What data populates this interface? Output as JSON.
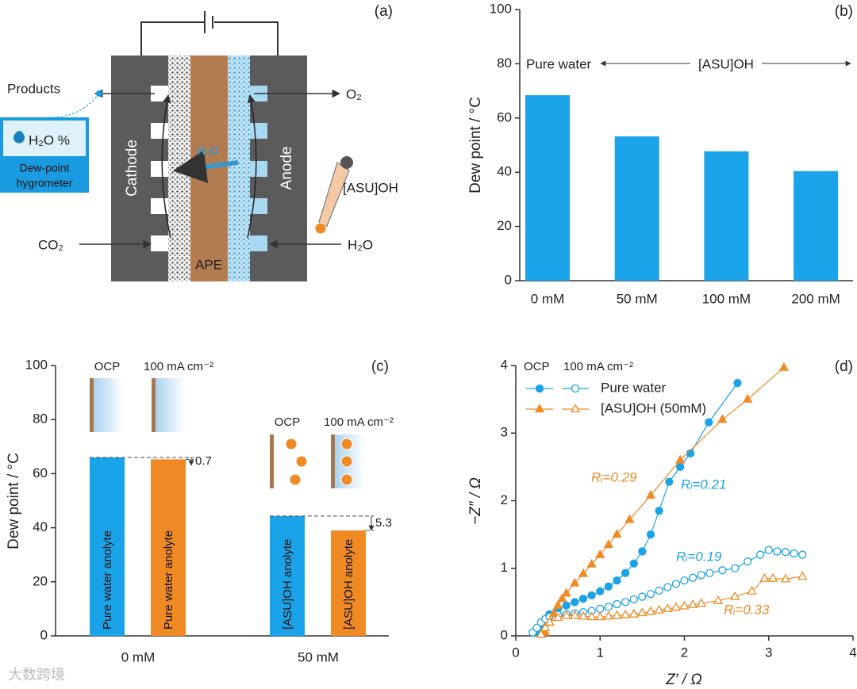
{
  "diagram": {
    "label": "(a)",
    "products": "Products",
    "hygrometer": {
      "reading": "H₂O %",
      "name": [
        "Dew-point",
        "hygrometer"
      ]
    },
    "cathode": "Cathode",
    "anode": "Anode",
    "membrane": "APE",
    "water": "H₂O",
    "additive": "[ASU]OH",
    "inputs": {
      "cathode": "CO₂",
      "anode": "H₂O"
    },
    "outputs": {
      "anode": "O₂"
    }
  },
  "chart_data": [
    {
      "type": "bar",
      "label": "(b)",
      "ylabel": "Dew point / °C",
      "categories": [
        "0 mM",
        "50 mM",
        "100 mM",
        "200 mM"
      ],
      "values": [
        68.4,
        53.2,
        47.7,
        40.4
      ],
      "color": "#1aa3e8",
      "ylim": [
        0,
        100
      ],
      "yticks": [
        0,
        20,
        40,
        60,
        80,
        100
      ],
      "annotations": [
        "Pure water",
        "[ASU]OH"
      ]
    },
    {
      "type": "grouped_bar",
      "label": "(c)",
      "ylabel": "Dew point / °C",
      "categories": [
        "0 mM",
        "50 mM"
      ],
      "series": [
        {
          "name": "OCP",
          "color": "#1aa3e8",
          "values": [
            66.0,
            44.3
          ],
          "bar_labels": [
            "Pure water anolyte",
            "[ASU]OH anolyte"
          ]
        },
        {
          "name": "100 mA cm⁻²",
          "color": "#f08a24",
          "values": [
            65.3,
            39.0
          ],
          "bar_labels": [
            "Pure water anolyte",
            "[ASU]OH anolyte"
          ]
        }
      ],
      "ylim": [
        0,
        100
      ],
      "yticks": [
        0,
        20,
        40,
        60,
        80,
        100
      ],
      "annotations": [
        "0.7",
        "5.3"
      ]
    },
    {
      "type": "line",
      "label": "(d)",
      "xlabel": "Z′ / Ω",
      "ylabel": "−Z″ / Ω",
      "xlim": [
        0,
        4
      ],
      "xticks": [
        0,
        1,
        2,
        3,
        4
      ],
      "ylim": [
        0,
        4
      ],
      "yticks": [
        0,
        1,
        2,
        3,
        4
      ],
      "series": [
        {
          "name": "Pure water",
          "condition": "OCP",
          "color": "#1aa3e8",
          "marker": "circle",
          "filled": true,
          "x": [
            0.25,
            0.3,
            0.35,
            0.4,
            0.5,
            0.6,
            0.7,
            0.8,
            0.9,
            1.0,
            1.1,
            1.2,
            1.3,
            1.4,
            1.5,
            1.6,
            1.7,
            1.82,
            1.95,
            2.07,
            2.29,
            2.63
          ],
          "y": [
            0.05,
            0.15,
            0.25,
            0.32,
            0.4,
            0.45,
            0.5,
            0.55,
            0.6,
            0.66,
            0.73,
            0.82,
            0.93,
            1.07,
            1.25,
            1.5,
            1.85,
            2.28,
            2.5,
            2.7,
            3.16,
            3.74
          ]
        },
        {
          "name": "Pure water",
          "condition": "100 mA cm⁻²",
          "color": "#1aa3e8",
          "marker": "circle",
          "filled": false,
          "x": [
            0.2,
            0.25,
            0.3,
            0.35,
            0.4,
            0.5,
            0.6,
            0.7,
            0.8,
            0.9,
            1.0,
            1.1,
            1.2,
            1.3,
            1.4,
            1.5,
            1.6,
            1.7,
            1.8,
            1.9,
            2.0,
            2.1,
            2.2,
            2.3,
            2.45,
            2.6,
            2.75,
            2.9,
            3.0,
            3.1,
            3.2,
            3.3,
            3.4
          ],
          "y": [
            0.05,
            0.12,
            0.2,
            0.25,
            0.28,
            0.31,
            0.32,
            0.33,
            0.35,
            0.37,
            0.4,
            0.43,
            0.47,
            0.5,
            0.54,
            0.58,
            0.62,
            0.67,
            0.72,
            0.77,
            0.82,
            0.86,
            0.9,
            0.93,
            0.97,
            1.0,
            1.1,
            1.2,
            1.27,
            1.25,
            1.24,
            1.22,
            1.2
          ]
        },
        {
          "name": "[ASU]OH (50mM)",
          "condition": "OCP",
          "color": "#f08a24",
          "marker": "triangle",
          "filled": true,
          "x": [
            0.35,
            0.4,
            0.45,
            0.5,
            0.55,
            0.6,
            0.7,
            0.8,
            0.9,
            1.0,
            1.1,
            1.2,
            1.35,
            1.6,
            1.95,
            2.45,
            2.75,
            3.18
          ],
          "y": [
            0.05,
            0.2,
            0.33,
            0.45,
            0.55,
            0.63,
            0.78,
            0.92,
            1.06,
            1.2,
            1.35,
            1.5,
            1.72,
            2.08,
            2.6,
            3.2,
            3.5,
            3.97
          ]
        },
        {
          "name": "[ASU]OH (50mM)",
          "condition": "100 mA cm⁻²",
          "color": "#f08a24",
          "marker": "triangle",
          "filled": false,
          "x": [
            0.3,
            0.35,
            0.4,
            0.5,
            0.6,
            0.7,
            0.8,
            0.9,
            1.0,
            1.1,
            1.2,
            1.3,
            1.4,
            1.5,
            1.6,
            1.7,
            1.8,
            1.9,
            2.0,
            2.1,
            2.2,
            2.4,
            2.6,
            2.8,
            2.95,
            3.05,
            3.2,
            3.4
          ],
          "y": [
            0.02,
            0.12,
            0.2,
            0.27,
            0.3,
            0.3,
            0.29,
            0.28,
            0.28,
            0.29,
            0.3,
            0.31,
            0.32,
            0.34,
            0.36,
            0.38,
            0.4,
            0.42,
            0.44,
            0.46,
            0.48,
            0.52,
            0.58,
            0.66,
            0.85,
            0.85,
            0.84,
            0.88
          ]
        }
      ],
      "annotations": [
        {
          "text": "Rᵢ=0.29",
          "color": "#f08a24"
        },
        {
          "text": "Rᵢ=0.21",
          "color": "#1aa3e8"
        },
        {
          "text": "Rᵢ=0.19",
          "color": "#1aa3e8"
        },
        {
          "text": "Rᵢ=0.33",
          "color": "#f08a24"
        }
      ]
    }
  ],
  "watermark": "大数跨境"
}
